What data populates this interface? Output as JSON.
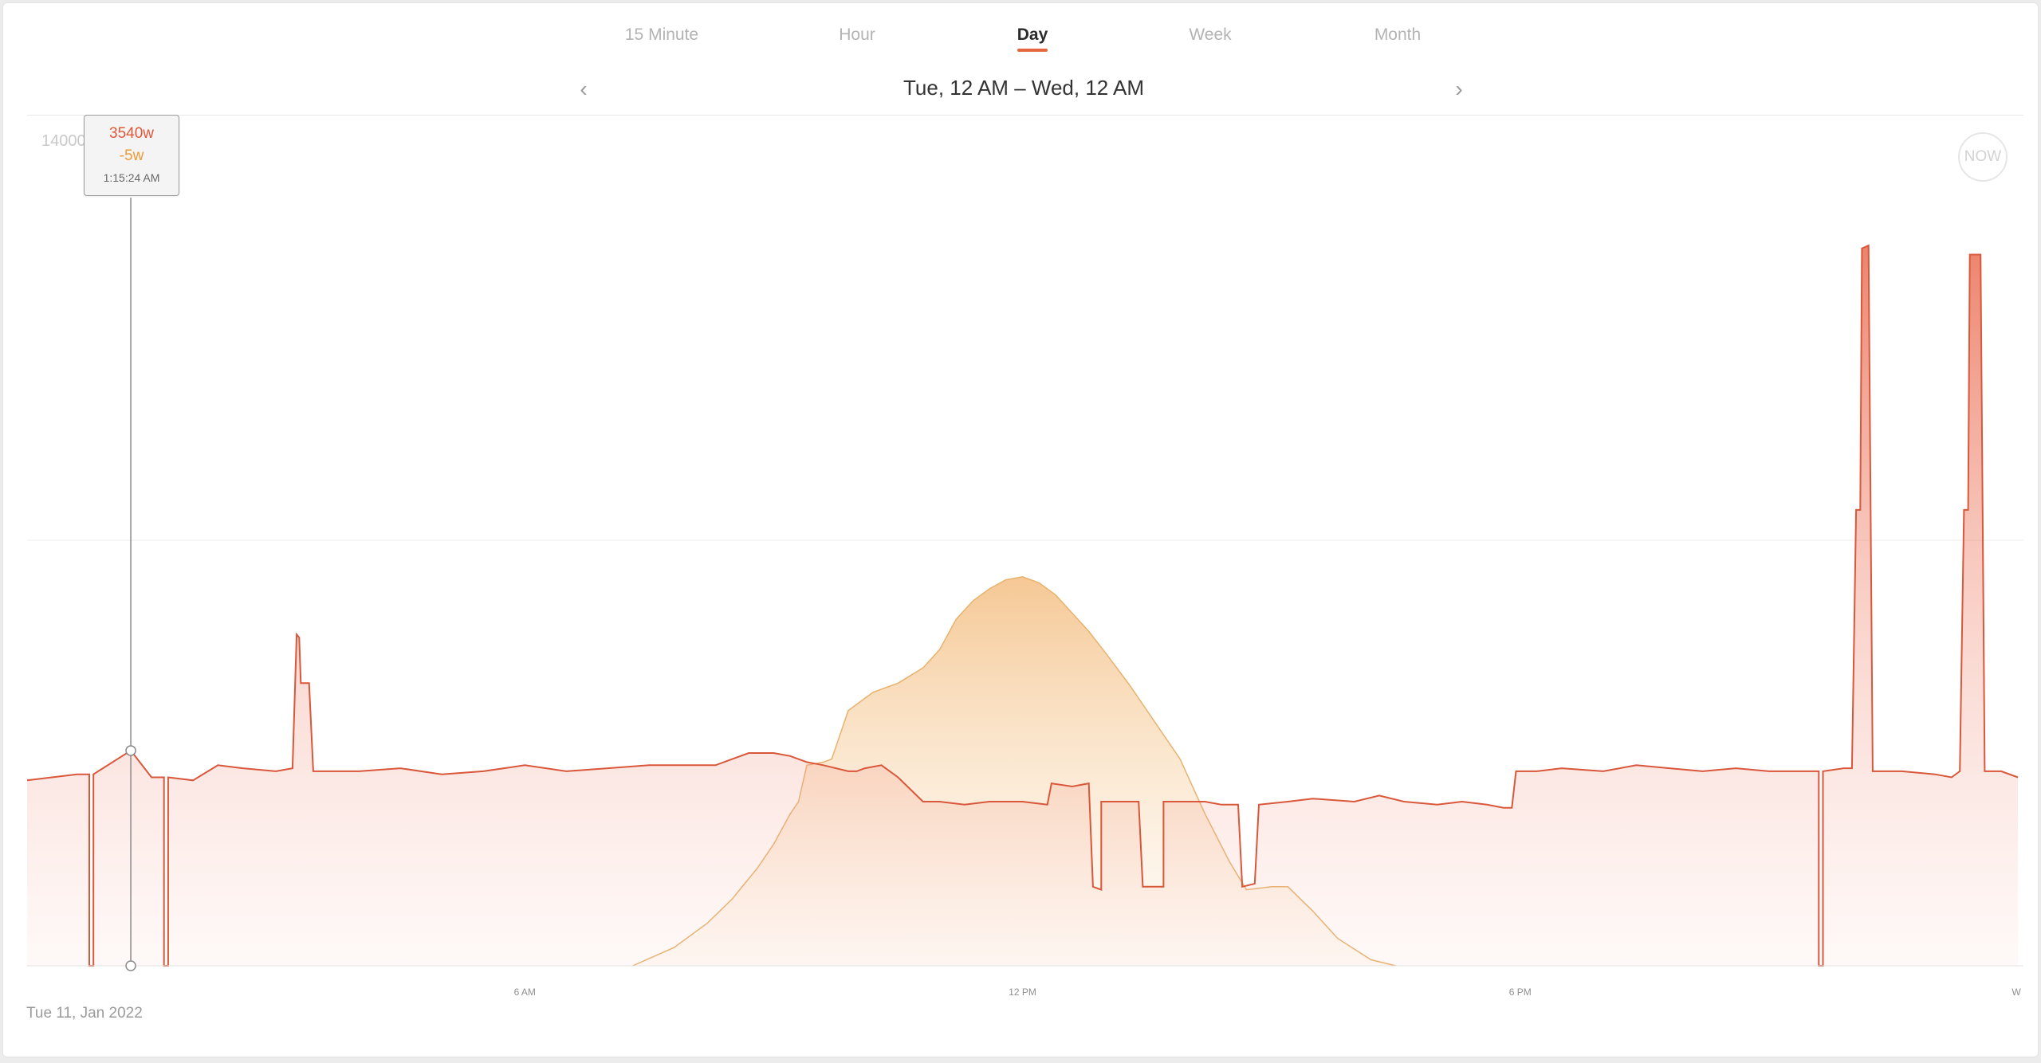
{
  "tabs": [
    {
      "label": "15 Minute",
      "active": false
    },
    {
      "label": "Hour",
      "active": false
    },
    {
      "label": "Day",
      "active": true
    },
    {
      "label": "Week",
      "active": false
    },
    {
      "label": "Month",
      "active": false
    }
  ],
  "range": {
    "label": "Tue, 12 AM – Wed, 12 AM",
    "prev_icon": "chevron-left-icon",
    "next_icon": "chevron-right-icon"
  },
  "now_button": "NOW",
  "date_label": "Tue 11, Jan 2022",
  "tooltip": {
    "consumption": "3540w",
    "solar": "-5w",
    "time": "1:15:24 AM"
  },
  "colors": {
    "consumption": "#e0573a",
    "solar": "#f3b060",
    "active_tab": "#e4673d"
  },
  "chart_data": {
    "type": "area",
    "x_unit": "hours since 12 AM",
    "ylim": [
      0,
      14000
    ],
    "ymax_label": "14000",
    "x_ticks": [
      {
        "x": 6,
        "label": "6 AM"
      },
      {
        "x": 12,
        "label": "12 PM"
      },
      {
        "x": 18,
        "label": "6 PM"
      },
      {
        "x": 24,
        "label": "W"
      }
    ],
    "grid": true,
    "cursor": {
      "x": 1.25,
      "y": 3540
    },
    "series": [
      {
        "name": "consumption",
        "points": [
          [
            0,
            3050
          ],
          [
            0.3,
            3100
          ],
          [
            0.6,
            3150
          ],
          [
            0.75,
            3150
          ],
          [
            0.75,
            0
          ],
          [
            0.8,
            0
          ],
          [
            0.8,
            3150
          ],
          [
            1.25,
            3540
          ],
          [
            1.5,
            3100
          ],
          [
            1.65,
            3100
          ],
          [
            1.65,
            0
          ],
          [
            1.7,
            0
          ],
          [
            1.7,
            3100
          ],
          [
            2.0,
            3050
          ],
          [
            2.3,
            3300
          ],
          [
            2.6,
            3250
          ],
          [
            3.0,
            3200
          ],
          [
            3.2,
            3250
          ],
          [
            3.25,
            5450
          ],
          [
            3.28,
            5400
          ],
          [
            3.3,
            4650
          ],
          [
            3.4,
            4650
          ],
          [
            3.45,
            3200
          ],
          [
            4.0,
            3200
          ],
          [
            4.5,
            3250
          ],
          [
            5.0,
            3150
          ],
          [
            5.5,
            3200
          ],
          [
            6.0,
            3300
          ],
          [
            6.5,
            3200
          ],
          [
            7.0,
            3250
          ],
          [
            7.5,
            3300
          ],
          [
            8.0,
            3300
          ],
          [
            8.3,
            3300
          ],
          [
            8.5,
            3400
          ],
          [
            8.7,
            3500
          ],
          [
            9.0,
            3500
          ],
          [
            9.2,
            3450
          ],
          [
            9.4,
            3350
          ],
          [
            9.6,
            3300
          ],
          [
            9.9,
            3200
          ],
          [
            10.0,
            3200
          ],
          [
            10.1,
            3250
          ],
          [
            10.3,
            3300
          ],
          [
            10.5,
            3100
          ],
          [
            10.8,
            2700
          ],
          [
            11.0,
            2700
          ],
          [
            11.3,
            2650
          ],
          [
            11.6,
            2700
          ],
          [
            12.0,
            2700
          ],
          [
            12.3,
            2650
          ],
          [
            12.35,
            3000
          ],
          [
            12.6,
            2950
          ],
          [
            12.8,
            3000
          ],
          [
            12.85,
            1300
          ],
          [
            12.95,
            1250
          ],
          [
            12.95,
            2700
          ],
          [
            13.4,
            2700
          ],
          [
            13.45,
            1300
          ],
          [
            13.7,
            1300
          ],
          [
            13.7,
            2700
          ],
          [
            14.2,
            2700
          ],
          [
            14.4,
            2650
          ],
          [
            14.6,
            2650
          ],
          [
            14.65,
            1300
          ],
          [
            14.8,
            1350
          ],
          [
            14.85,
            2650
          ],
          [
            15.2,
            2700
          ],
          [
            15.5,
            2750
          ],
          [
            16.0,
            2700
          ],
          [
            16.3,
            2800
          ],
          [
            16.6,
            2700
          ],
          [
            17.0,
            2650
          ],
          [
            17.3,
            2700
          ],
          [
            17.6,
            2650
          ],
          [
            17.8,
            2600
          ],
          [
            17.9,
            2600
          ],
          [
            17.95,
            3200
          ],
          [
            18.2,
            3200
          ],
          [
            18.5,
            3250
          ],
          [
            19.0,
            3200
          ],
          [
            19.4,
            3300
          ],
          [
            19.8,
            3250
          ],
          [
            20.2,
            3200
          ],
          [
            20.6,
            3250
          ],
          [
            21.0,
            3200
          ],
          [
            21.5,
            3200
          ],
          [
            21.6,
            3200
          ],
          [
            21.6,
            0
          ],
          [
            21.65,
            0
          ],
          [
            21.65,
            3200
          ],
          [
            21.9,
            3250
          ],
          [
            22.0,
            3250
          ],
          [
            22.05,
            7500
          ],
          [
            22.1,
            7500
          ],
          [
            22.12,
            11800
          ],
          [
            22.2,
            11850
          ],
          [
            22.25,
            3200
          ],
          [
            22.6,
            3200
          ],
          [
            23.0,
            3150
          ],
          [
            23.2,
            3100
          ],
          [
            23.3,
            3200
          ],
          [
            23.35,
            7500
          ],
          [
            23.4,
            7500
          ],
          [
            23.42,
            11700
          ],
          [
            23.55,
            11700
          ],
          [
            23.6,
            3200
          ],
          [
            23.8,
            3200
          ],
          [
            24.0,
            3100
          ]
        ]
      },
      {
        "name": "solar",
        "points": [
          [
            7.3,
            0
          ],
          [
            7.8,
            300
          ],
          [
            8.2,
            700
          ],
          [
            8.5,
            1100
          ],
          [
            8.8,
            1600
          ],
          [
            9.0,
            2000
          ],
          [
            9.2,
            2500
          ],
          [
            9.3,
            2700
          ],
          [
            9.4,
            3300
          ],
          [
            9.6,
            3350
          ],
          [
            9.7,
            3400
          ],
          [
            9.8,
            3800
          ],
          [
            9.9,
            4200
          ],
          [
            10.0,
            4300
          ],
          [
            10.2,
            4500
          ],
          [
            10.5,
            4650
          ],
          [
            10.8,
            4900
          ],
          [
            11.0,
            5200
          ],
          [
            11.2,
            5700
          ],
          [
            11.4,
            6000
          ],
          [
            11.6,
            6200
          ],
          [
            11.8,
            6350
          ],
          [
            12.0,
            6400
          ],
          [
            12.2,
            6300
          ],
          [
            12.4,
            6100
          ],
          [
            12.6,
            5800
          ],
          [
            12.8,
            5500
          ],
          [
            13.0,
            5150
          ],
          [
            13.3,
            4600
          ],
          [
            13.6,
            4000
          ],
          [
            13.9,
            3400
          ],
          [
            14.2,
            2500
          ],
          [
            14.5,
            1700
          ],
          [
            14.7,
            1250
          ],
          [
            15.0,
            1300
          ],
          [
            15.2,
            1300
          ],
          [
            15.5,
            900
          ],
          [
            15.8,
            450
          ],
          [
            16.2,
            100
          ],
          [
            16.5,
            0
          ]
        ]
      }
    ]
  }
}
